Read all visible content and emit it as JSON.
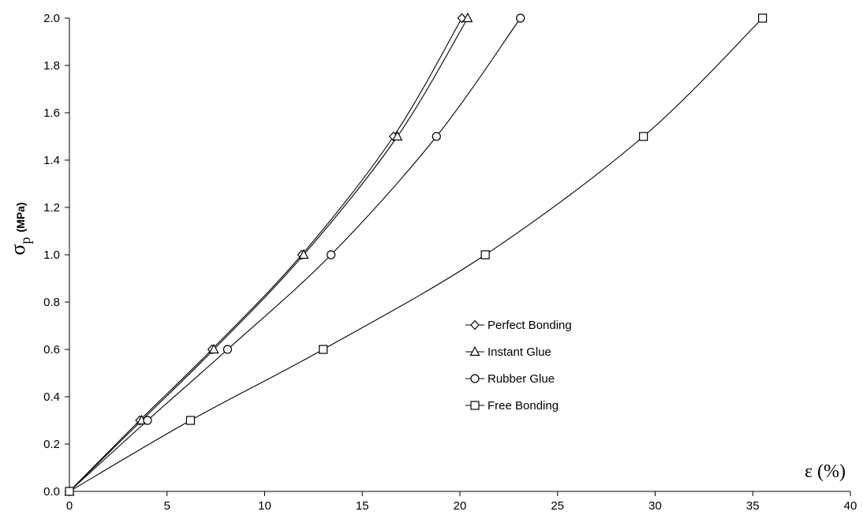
{
  "chart_data": {
    "type": "line",
    "xlabel": "ε (%)",
    "ylabel": {
      "symbol": "σ",
      "subscript": "p",
      "unit": "(MPa)"
    },
    "xlim": [
      0,
      40
    ],
    "ylim": [
      0,
      2.0
    ],
    "xticks": [
      "0",
      "5",
      "10",
      "15",
      "20",
      "25",
      "30",
      "35",
      "40"
    ],
    "yticks": [
      "0.0",
      "0.2",
      "0.4",
      "0.6",
      "0.8",
      "1.0",
      "1.2",
      "1.4",
      "1.6",
      "1.8",
      "2.0"
    ],
    "grid": false,
    "legend_position": "center-right",
    "series": [
      {
        "name": "Perfect Bonding",
        "marker": "diamond",
        "points": [
          [
            0,
            0
          ],
          [
            3.6,
            0.3
          ],
          [
            7.3,
            0.6
          ],
          [
            11.9,
            1.0
          ],
          [
            16.6,
            1.5
          ],
          [
            20.1,
            2.0
          ]
        ]
      },
      {
        "name": "Instant Glue",
        "marker": "triangle",
        "points": [
          [
            0,
            0
          ],
          [
            3.7,
            0.3
          ],
          [
            7.4,
            0.6
          ],
          [
            12.0,
            1.0
          ],
          [
            16.8,
            1.5
          ],
          [
            20.4,
            2.0
          ]
        ]
      },
      {
        "name": "Rubber Glue",
        "marker": "circle",
        "points": [
          [
            0,
            0
          ],
          [
            4.0,
            0.3
          ],
          [
            8.1,
            0.6
          ],
          [
            13.4,
            1.0
          ],
          [
            18.8,
            1.5
          ],
          [
            23.1,
            2.0
          ]
        ]
      },
      {
        "name": "Free Bonding",
        "marker": "square",
        "points": [
          [
            0,
            0
          ],
          [
            6.2,
            0.3
          ],
          [
            13.0,
            0.6
          ],
          [
            21.3,
            1.0
          ],
          [
            29.4,
            1.5
          ],
          [
            35.5,
            2.0
          ]
        ]
      }
    ]
  }
}
